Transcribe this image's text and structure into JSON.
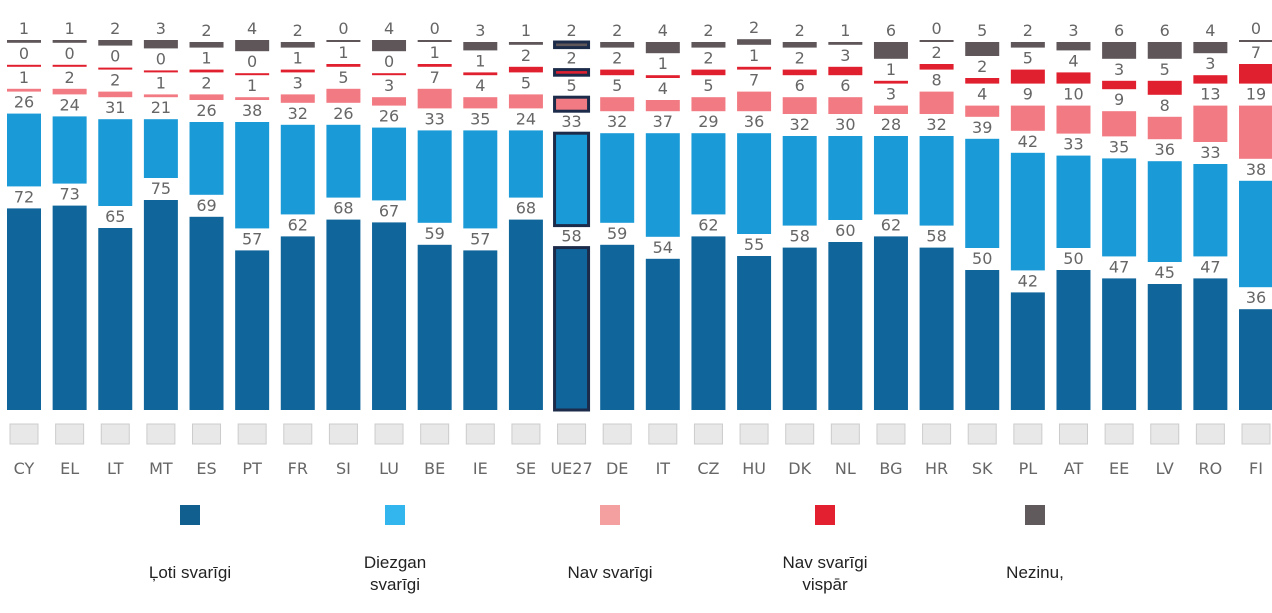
{
  "chart_data": {
    "type": "bar",
    "stacked": true,
    "highlight": "UE27",
    "categories": [
      "CY",
      "EL",
      "LT",
      "MT",
      "ES",
      "PT",
      "FR",
      "SI",
      "LU",
      "BE",
      "IE",
      "SE",
      "UE27",
      "DE",
      "IT",
      "CZ",
      "HU",
      "DK",
      "NL",
      "BG",
      "HR",
      "SK",
      "PL",
      "AT",
      "EE",
      "LV",
      "RO",
      "FI"
    ],
    "series": [
      {
        "name": "Ļoti svarīgi",
        "color": "#10669b",
        "legend_color": "#105f8f",
        "values": [
          72,
          73,
          65,
          75,
          69,
          57,
          62,
          68,
          67,
          59,
          57,
          68,
          58,
          59,
          54,
          62,
          55,
          58,
          60,
          62,
          58,
          50,
          42,
          50,
          47,
          45,
          47,
          36
        ]
      },
      {
        "name": "Diezgan svarīgi",
        "color": "#1a9bd7",
        "legend_color": "#33b5ee",
        "values": [
          26,
          24,
          31,
          21,
          26,
          38,
          32,
          26,
          26,
          33,
          35,
          24,
          33,
          32,
          37,
          29,
          36,
          32,
          30,
          28,
          32,
          39,
          42,
          33,
          35,
          36,
          33,
          38
        ]
      },
      {
        "name": "Nav svarīgi",
        "color": "#f27a82",
        "legend_color": "#f4a0a0",
        "values": [
          1,
          2,
          2,
          1,
          2,
          1,
          3,
          5,
          3,
          7,
          4,
          5,
          5,
          5,
          4,
          5,
          7,
          6,
          6,
          3,
          8,
          4,
          9,
          10,
          9,
          8,
          13,
          19
        ]
      },
      {
        "name": "Nav svarīgi vispār",
        "color": "#e1202f",
        "legend_color": "#e2202f",
        "values": [
          0,
          0,
          0,
          0,
          1,
          0,
          1,
          1,
          0,
          1,
          1,
          2,
          2,
          2,
          1,
          2,
          1,
          2,
          3,
          1,
          2,
          2,
          5,
          4,
          3,
          5,
          3,
          7
        ]
      },
      {
        "name": "Nezinu,",
        "color": "#5f5659",
        "legend_color": "#605a5c",
        "values": [
          1,
          1,
          2,
          3,
          2,
          4,
          2,
          0,
          4,
          0,
          3,
          1,
          2,
          2,
          4,
          2,
          2,
          2,
          1,
          6,
          0,
          5,
          2,
          3,
          6,
          6,
          4,
          0
        ]
      }
    ]
  }
}
